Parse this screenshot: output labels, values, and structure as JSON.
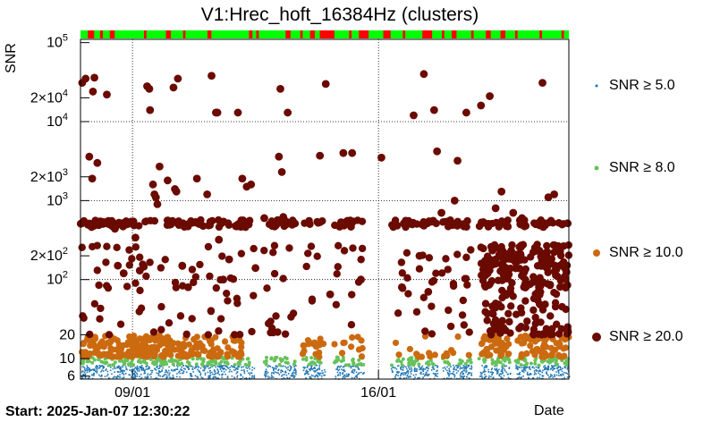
{
  "chart_data": {
    "type": "scatter",
    "title": "V1:Hrec_hoft_16384Hz (clusters)",
    "xlabel": "Date",
    "ylabel": "SNR",
    "yscale": "log",
    "ylim": [
      5.5,
      110000
    ],
    "xlim": [
      "2025-01-07 12:30",
      "2025-01-21 10:00"
    ],
    "x_ticks": [
      {
        "label": "09/01",
        "x": "2025-01-09 00:00"
      },
      {
        "label": "16/01",
        "x": "2025-01-16 00:00"
      }
    ],
    "y_ticks": [
      {
        "label": "6",
        "value": 6
      },
      {
        "label": "10",
        "value": 10
      },
      {
        "label": "20",
        "value": 20
      },
      {
        "label": "10",
        "sup": "2",
        "value": 100
      },
      {
        "label": "2×10",
        "sup": "2",
        "value": 200
      },
      {
        "label": "10",
        "sup": "3",
        "value": 1000
      },
      {
        "label": "2×10",
        "sup": "3",
        "value": 2000
      },
      {
        "label": "10",
        "sup": "4",
        "value": 10000
      },
      {
        "label": "2×10",
        "sup": "4",
        "value": 20000
      },
      {
        "label": "10",
        "sup": "5",
        "value": 100000
      }
    ],
    "grid": true,
    "legend_position": "right",
    "series": [
      {
        "name": "SNR ≥ 5.0",
        "color": "#1f77b4",
        "symbol": "dot"
      },
      {
        "name": "SNR ≥ 8.0",
        "color": "#66c25a",
        "symbol": "dot"
      },
      {
        "name": "SNR ≥ 10.0",
        "color": "#cc6a10",
        "symbol": "circle"
      },
      {
        "name": "SNR ≥ 20.0",
        "color": "#6a0a00",
        "symbol": "circle"
      }
    ],
    "high_snr_points": [
      [
        "2025-01-07 12:40",
        510
      ],
      [
        "2025-01-07 13:40",
        31000
      ],
      [
        "2025-01-07 16:00",
        35000
      ],
      [
        "2025-01-07 18:30",
        3600
      ],
      [
        "2025-01-07 20:30",
        1900
      ],
      [
        "2025-01-07 21:00",
        24000
      ],
      [
        "2025-01-07 22:00",
        36000
      ],
      [
        "2025-01-08 00:00",
        3000
      ],
      [
        "2025-01-08 06:30",
        22000
      ],
      [
        "2025-01-08 12:00",
        440
      ],
      [
        "2025-01-08 14:00",
        150
      ],
      [
        "2025-01-08 18:00",
        120
      ],
      [
        "2025-01-09 02:00",
        340
      ],
      [
        "2025-01-09 05:00",
        130
      ],
      [
        "2025-01-09 10:00",
        28000
      ],
      [
        "2025-01-09 11:30",
        26000
      ],
      [
        "2025-01-09 12:00",
        14000
      ],
      [
        "2025-01-09 14:00",
        1600
      ],
      [
        "2025-01-09 15:00",
        1200
      ],
      [
        "2025-01-09 16:00",
        1100
      ],
      [
        "2025-01-09 17:00",
        900
      ],
      [
        "2025-01-09 18:30",
        2700
      ],
      [
        "2025-01-10 00:00",
        1800
      ],
      [
        "2025-01-10 04:00",
        27000
      ],
      [
        "2025-01-10 05:00",
        1400
      ],
      [
        "2025-01-10 06:00",
        1300
      ],
      [
        "2025-01-10 07:00",
        35000
      ],
      [
        "2025-01-10 10:00",
        150
      ],
      [
        "2025-01-10 14:00",
        80
      ],
      [
        "2025-01-10 20:00",
        1900
      ],
      [
        "2025-01-11 03:00",
        1200
      ],
      [
        "2025-01-11 06:00",
        38000
      ],
      [
        "2025-01-11 09:00",
        13000
      ],
      [
        "2025-01-11 10:00",
        13000
      ],
      [
        "2025-01-11 11:00",
        320
      ],
      [
        "2025-01-11 14:00",
        100
      ],
      [
        "2025-01-11 18:00",
        180
      ],
      [
        "2025-01-12 00:00",
        13000
      ],
      [
        "2025-01-12 03:00",
        1900
      ],
      [
        "2025-01-12 06:00",
        1500
      ],
      [
        "2025-01-12 09:00",
        1600
      ],
      [
        "2025-01-12 12:00",
        140
      ],
      [
        "2025-01-12 18:00",
        600
      ],
      [
        "2025-01-13 04:00",
        3600
      ],
      [
        "2025-01-13 05:00",
        26000
      ],
      [
        "2025-01-13 06:00",
        2300
      ],
      [
        "2025-01-13 07:00",
        620
      ],
      [
        "2025-01-13 10:00",
        13000
      ],
      [
        "2025-01-14 08:00",
        3700
      ],
      [
        "2025-01-14 12:00",
        30000
      ],
      [
        "2025-01-14 15:00",
        65
      ],
      [
        "2025-01-15 00:00",
        4000
      ],
      [
        "2025-01-15 06:00",
        4000
      ],
      [
        "2025-01-15 12:00",
        100
      ],
      [
        "2025-01-16 02:00",
        3500
      ],
      [
        "2025-01-16 16:00",
        80
      ],
      [
        "2025-01-17 00:00",
        12000
      ],
      [
        "2025-01-17 04:00",
        200
      ],
      [
        "2025-01-17 07:00",
        40000
      ],
      [
        "2025-01-17 10:00",
        70
      ],
      [
        "2025-01-17 14:00",
        14000
      ],
      [
        "2025-01-17 16:00",
        4200
      ],
      [
        "2025-01-17 19:00",
        700
      ],
      [
        "2025-01-18 04:00",
        1000
      ],
      [
        "2025-01-18 06:00",
        3200
      ],
      [
        "2025-01-18 12:00",
        13000
      ],
      [
        "2025-01-18 22:00",
        16000
      ],
      [
        "2025-01-19 04:00",
        21000
      ],
      [
        "2025-01-19 08:00",
        800
      ],
      [
        "2025-01-19 12:00",
        1300
      ],
      [
        "2025-01-19 20:00",
        700
      ],
      [
        "2025-01-20 02:00",
        600
      ],
      [
        "2025-01-20 16:00",
        31000
      ],
      [
        "2025-01-20 20:00",
        1100
      ],
      [
        "2025-01-21 00:00",
        1200
      ]
    ]
  },
  "footer": {
    "start_label": "Start: 2025-Jan-07 12:30:22",
    "x_axis_label": "Date"
  }
}
